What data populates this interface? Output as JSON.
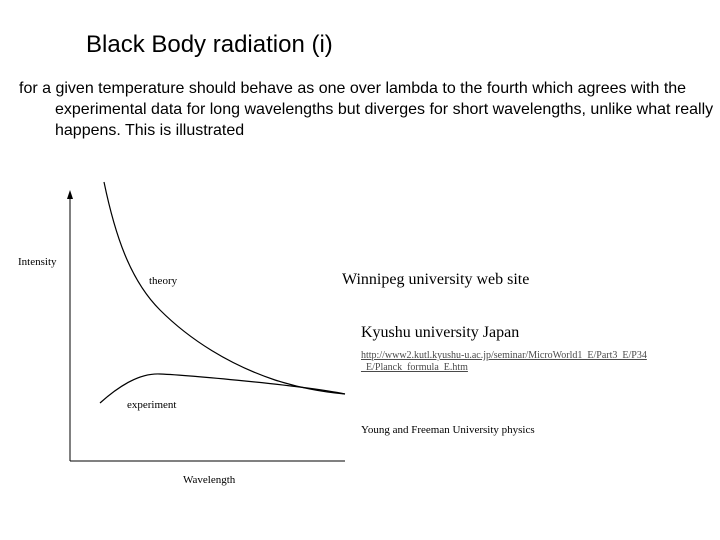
{
  "slide": {
    "title": "Black Body radiation (i)",
    "body": "for a given temperature should behave as one over lambda to the fourth which agrees with the experimental data for long wavelengths but diverges for short wavelengths, unlike what really happens. This is illustrated"
  },
  "figure": {
    "ylabel": "Intensity",
    "xlabel": "Wavelength",
    "curve_labels": {
      "theory": "theory",
      "experiment": "experiment"
    }
  },
  "sources": {
    "winnipeg": "Winnipeg university web site",
    "kyushu": "Kyushu university Japan",
    "kyushu_link": "http://www2.kutl.kyushu-u.ac.jp/seminar/MicroWorld1_E/Part3_E/P34_E/Planck_formula_E.htm",
    "young_freeman": "Young and Freeman University physics"
  }
}
